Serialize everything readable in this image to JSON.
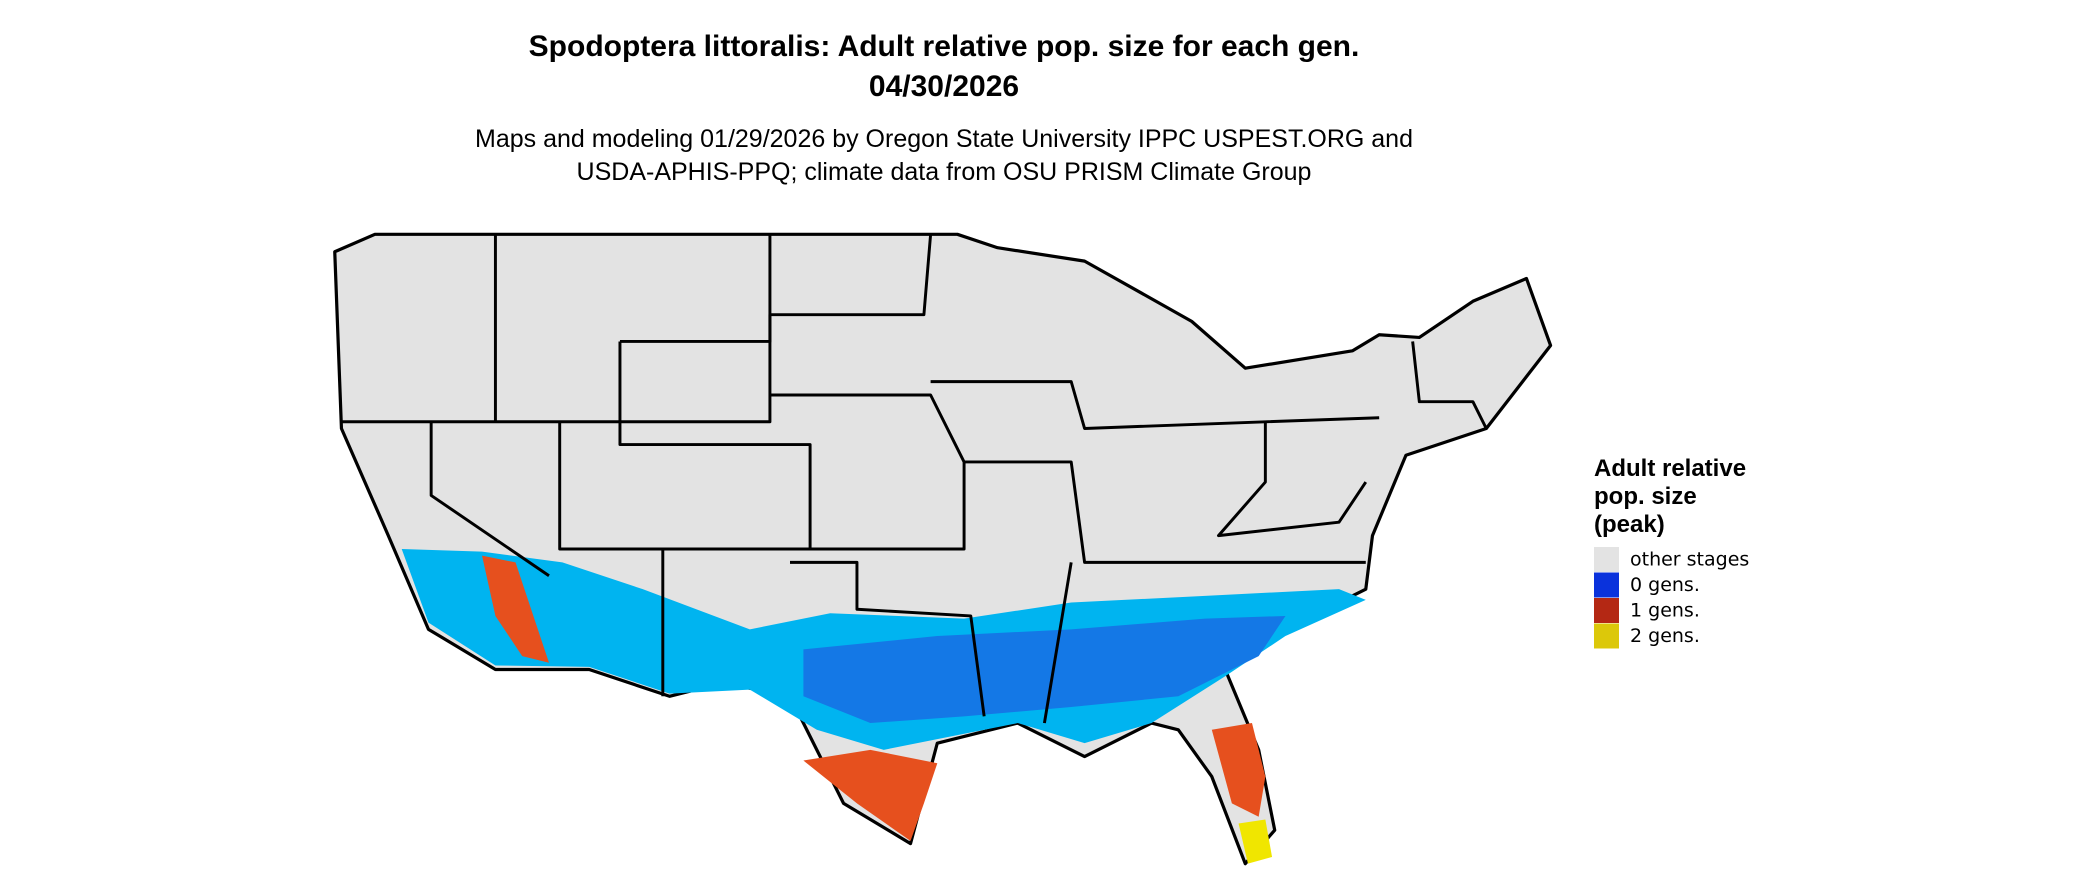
{
  "header": {
    "title": "Spodoptera littoralis: Adult relative pop. size for each gen.",
    "date": "04/30/2026",
    "subtitle": [
      "Maps and modeling 01/29/2026 by Oregon State University IPPC USPEST.ORG and",
      "USDA-APHIS-PPQ; climate data from OSU PRISM Climate Group"
    ]
  },
  "legend": {
    "title": [
      "Adult relative",
      "pop. size",
      "(peak)"
    ],
    "items": [
      {
        "label": "other stages",
        "color": "#e3e3e3"
      },
      {
        "label": "0 gens.",
        "color": "#0a32dc"
      },
      {
        "label": "1 gens.",
        "color": "#b42814"
      },
      {
        "label": "2 gens.",
        "color": "#dcc80a"
      }
    ]
  }
}
